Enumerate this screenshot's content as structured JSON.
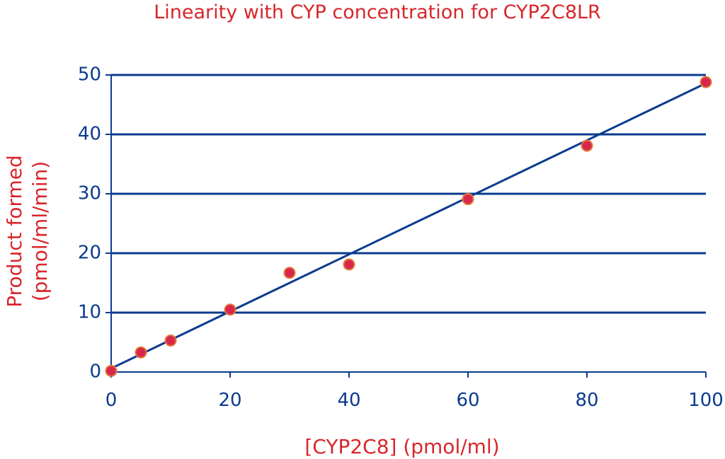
{
  "chart_data": {
    "type": "scatter",
    "title": "Linearity with CYP concentration for CYP2C8LR",
    "xlabel": "[CYP2C8] (pmol/ml)",
    "ylabel_lines": [
      "Product formed",
      "(pmol/ml/min)"
    ],
    "xlim": [
      0,
      100
    ],
    "ylim": [
      0,
      50
    ],
    "x_ticks": [
      0,
      20,
      40,
      60,
      80,
      100
    ],
    "y_ticks": [
      0,
      10,
      20,
      30,
      40,
      50
    ],
    "grid": "horizontal",
    "x": [
      0,
      5,
      10,
      20,
      30,
      40,
      60,
      80,
      100
    ],
    "y": [
      0.2,
      3.3,
      5.3,
      10.5,
      16.7,
      18.1,
      29.1,
      38.1,
      48.8
    ],
    "trendline": {
      "type": "linear",
      "from": [
        0,
        0.6
      ],
      "to": [
        100,
        48.6
      ]
    },
    "colors": {
      "axis": "#0b3b8f",
      "grid": "#0b3b8f",
      "line": "#0b3b8f",
      "marker_fill": "#d8264c",
      "marker_stroke": "#e07a3a",
      "text_red": "#d8262b"
    }
  }
}
